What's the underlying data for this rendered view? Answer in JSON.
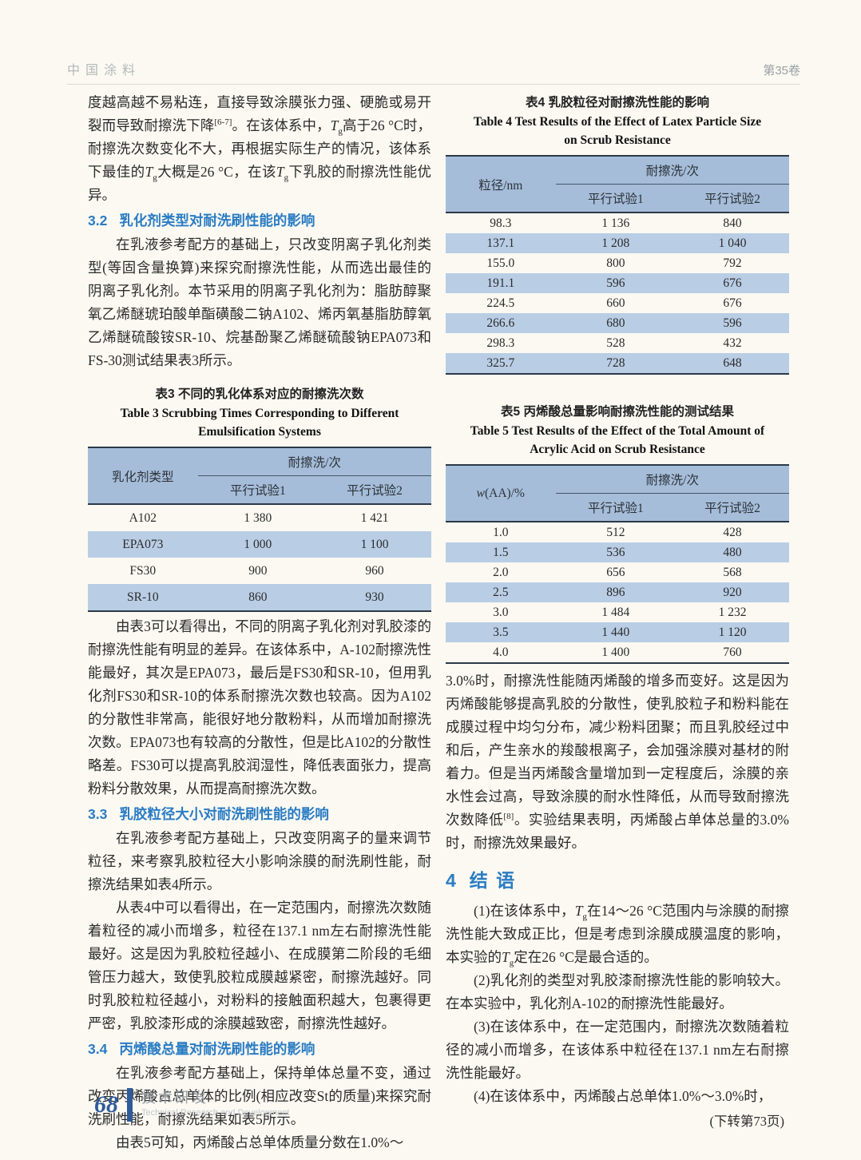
{
  "colors": {
    "accent_blue": "#2a7cc4",
    "table_header_bg": "#a5bdd9",
    "table_stripe_bg": "#b9cde5",
    "footer_blue": "#2f5b9a"
  },
  "header": {
    "journal": "中国涂料",
    "volume": "第35卷"
  },
  "footer": {
    "page_number": "68",
    "section_zh": "技术研发",
    "section_en": "Technical Research and Development"
  },
  "left": {
    "p1_rich": [
      {
        "t": "度越高越不易粘连，直接导致涂膜张力强、硬脆或易开裂而导致耐擦洗下降"
      },
      {
        "t": "[6-7]",
        "s": "sup"
      },
      {
        "t": "。在该体系中，"
      },
      {
        "t": "T",
        "s": "i"
      },
      {
        "t": "g",
        "s": "sub"
      },
      {
        "t": "高于26 °C时，耐擦洗次数变化不大，再根据实际生产的情况，该体系下最佳的"
      },
      {
        "t": "T",
        "s": "i"
      },
      {
        "t": "g",
        "s": "sub"
      },
      {
        "t": "大概是26 °C，在该"
      },
      {
        "t": "T",
        "s": "i"
      },
      {
        "t": "g",
        "s": "sub"
      },
      {
        "t": "下乳胶的耐擦洗性能优异。"
      }
    ],
    "h32_num": "3.2",
    "h32_title": "乳化剂类型对耐洗刷性能的影响",
    "p32": "在乳液参考配方的基础上，只改变阴离子乳化剂类型(等固含量换算)来探究耐擦洗性能，从而选出最佳的阴离子乳化剂。本节采用的阴离子乳化剂为：脂肪醇聚氧乙烯醚琥珀酸单酯磺酸二钠A102、烯丙氧基脂肪醇氧乙烯醚硫酸铵SR-10、烷基酚聚乙烯醚硫酸钠EPA073和FS-30测试结果表3所示。",
    "table3": {
      "caption_zh": "表3  不同的乳化体系对应的耐擦洗次数",
      "caption_en1": "Table 3  Scrubbing Times Corresponding to Different",
      "caption_en2": "Emulsification Systems",
      "col1": "乳化剂类型",
      "span_header": "耐擦洗/次",
      "sub1": "平行试验1",
      "sub2": "平行试验2",
      "rows": [
        [
          "A102",
          "1 380",
          "1 421"
        ],
        [
          "EPA073",
          "1 000",
          "1 100"
        ],
        [
          "FS30",
          "900",
          "960"
        ],
        [
          "SR-10",
          "860",
          "930"
        ]
      ]
    },
    "p_t3": "由表3可以看得出，不同的阴离子乳化剂对乳胶漆的耐擦洗性能有明显的差异。在该体系中，A-102耐擦洗性能最好，其次是EPA073，最后是FS30和SR-10，但用乳化剂FS30和SR-10的体系耐擦洗次数也较高。因为A102的分散性非常高，能很好地分散粉料，从而增加耐擦洗次数。EPA073也有较高的分散性，但是比A102的分散性略差。FS30可以提高乳胶润湿性，降低表面张力，提高粉料分散效果，从而提高耐擦洗次数。",
    "h33_num": "3.3",
    "h33_title": "乳胶粒径大小对耐洗刷性能的影响",
    "p33a": "在乳液参考配方基础上，只改变阴离子的量来调节粒径，来考察乳胶粒径大小影响涂膜的耐洗刷性能，耐擦洗结果如表4所示。",
    "p33b": "从表4中可以看得出，在一定范围内，耐擦洗次数随着粒径的减小而增多，粒径在137.1 nm左右耐擦洗性能最好。这是因为乳胶粒径越小、在成膜第二阶段的毛细管压力越大，致使乳胶粒成膜越紧密，耐擦洗越好。同时乳胶粒粒径越小，对粉料的接触面积越大，包裹得更严密，乳胶漆形成的涂膜越致密，耐擦洗性越好。",
    "h34_num": "3.4",
    "h34_title": "丙烯酸总量对耐洗刷性能的影响",
    "p34a": "在乳液参考配方基础上，保持单体总量不变，通过改变丙烯酸占总单体的比例(相应改变St的质量)来探究耐洗刷性能，耐擦洗结果如表5所示。",
    "p34b": "由表5可知，丙烯酸占总单体质量分数在1.0%～"
  },
  "right": {
    "table4": {
      "caption_zh": "表4  乳胶粒径对耐擦洗性能的影响",
      "caption_en1": "Table 4  Test Results of the Effect of Latex Particle Size",
      "caption_en2": "on Scrub Resistance",
      "col1": "粒径/nm",
      "span_header": "耐擦洗/次",
      "sub1": "平行试验1",
      "sub2": "平行试验2",
      "rows": [
        [
          "98.3",
          "1 136",
          "840"
        ],
        [
          "137.1",
          "1 208",
          "1 040"
        ],
        [
          "155.0",
          "800",
          "792"
        ],
        [
          "191.1",
          "596",
          "676"
        ],
        [
          "224.5",
          "660",
          "676"
        ],
        [
          "266.6",
          "680",
          "596"
        ],
        [
          "298.3",
          "528",
          "432"
        ],
        [
          "325.7",
          "728",
          "648"
        ]
      ]
    },
    "table5": {
      "caption_zh": "表5  丙烯酸总量影响耐擦洗性能的测试结果",
      "caption_en1": "Table 5  Test Results of the Effect of the Total Amount of",
      "caption_en2": "Acrylic Acid on Scrub Resistance",
      "col1_rich": [
        {
          "t": "w",
          "s": "i"
        },
        {
          "t": "(AA)/%"
        }
      ],
      "span_header": "耐擦洗/次",
      "sub1": "平行试验1",
      "sub2": "平行试验2",
      "rows": [
        [
          "1.0",
          "512",
          "428"
        ],
        [
          "1.5",
          "536",
          "480"
        ],
        [
          "2.0",
          "656",
          "568"
        ],
        [
          "2.5",
          "896",
          "920"
        ],
        [
          "3.0",
          "1 484",
          "1 232"
        ],
        [
          "3.5",
          "1 440",
          "1 120"
        ],
        [
          "4.0",
          "1 400",
          "760"
        ]
      ]
    },
    "p_t5_rich": [
      {
        "t": "3.0%时，耐擦洗性能随丙烯酸的增多而变好。这是因为丙烯酸能够提高乳胶的分散性，使乳胶粒子和粉料能在成膜过程中均匀分布，减少粉料团聚；而且乳胶经过中和后，产生亲水的羧酸根离子，会加强涂膜对基材的附着力。但是当丙烯酸含量增加到一定程度后，涂膜的亲水性会过高，导致涂膜的耐水性降低，从而导致耐擦洗次数降低"
      },
      {
        "t": "[8]",
        "s": "sup"
      },
      {
        "t": "。实验结果表明，丙烯酸占单体总量的3.0%时，耐擦洗效果最好。"
      }
    ],
    "h4_num": "4",
    "h4_title": "结  语",
    "c1_rich": [
      {
        "t": "(1)在该体系中，"
      },
      {
        "t": "T",
        "s": "i"
      },
      {
        "t": "g",
        "s": "sub"
      },
      {
        "t": "在14～26 °C范围内与涂膜的耐擦洗性能大致成正比，但是考虑到涂膜成膜温度的影响，本实验的"
      },
      {
        "t": "T",
        "s": "i"
      },
      {
        "t": "g",
        "s": "sub"
      },
      {
        "t": "定在26 °C是最合适的。"
      }
    ],
    "c2": "(2)乳化剂的类型对乳胶漆耐擦洗性能的影响较大。在本实验中，乳化剂A-102的耐擦洗性能最好。",
    "c3": "(3)在该体系中，在一定范围内，耐擦洗次数随着粒径的减小而增多，在该体系中粒径在137.1 nm左右耐擦洗性能最好。",
    "c4": "(4)在该体系中，丙烯酸占总单体1.0%～3.0%时，",
    "continued": "(下转第73页)"
  }
}
